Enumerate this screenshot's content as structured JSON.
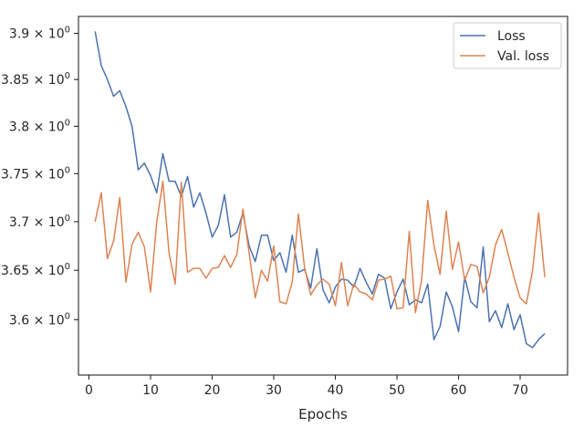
{
  "chart_data": {
    "type": "line",
    "title": "",
    "xlabel": "Epochs",
    "ylabel": "",
    "xlim": [
      -1.7,
      77.7
    ],
    "ylim": [
      3.5447,
      3.9185
    ],
    "yscale": "log",
    "grid": false,
    "legend": "upper right",
    "x_ticks": [
      0,
      10,
      20,
      30,
      40,
      50,
      60,
      70
    ],
    "y_ticks": [
      {
        "value": 3.6,
        "mant": "3.6",
        "exp": "0"
      },
      {
        "value": 3.65,
        "mant": "3.65",
        "exp": "0"
      },
      {
        "value": 3.7,
        "mant": "3.7",
        "exp": "0"
      },
      {
        "value": 3.75,
        "mant": "3.75",
        "exp": "0"
      },
      {
        "value": 3.8,
        "mant": "3.8",
        "exp": "0"
      },
      {
        "value": 3.85,
        "mant": "3.85",
        "exp": "0"
      },
      {
        "value": 3.9,
        "mant": "3.9",
        "exp": "0"
      }
    ],
    "x": [
      1,
      2,
      3,
      4,
      5,
      6,
      7,
      8,
      9,
      10,
      11,
      12,
      13,
      14,
      15,
      16,
      17,
      18,
      19,
      20,
      21,
      22,
      23,
      24,
      25,
      26,
      27,
      28,
      29,
      30,
      31,
      32,
      33,
      34,
      35,
      36,
      37,
      38,
      39,
      40,
      41,
      42,
      43,
      44,
      45,
      46,
      47,
      48,
      49,
      50,
      51,
      52,
      53,
      54,
      55,
      56,
      57,
      58,
      59,
      60,
      61,
      62,
      63,
      64,
      65,
      66,
      67,
      68,
      69,
      70,
      71,
      72,
      73,
      74
    ],
    "series": [
      {
        "name": "Loss",
        "color": "#4c72b0",
        "values": [
          3.902,
          3.865,
          3.85,
          3.832,
          3.838,
          3.821,
          3.8,
          3.754,
          3.761,
          3.748,
          3.73,
          3.771,
          3.742,
          3.742,
          3.726,
          3.747,
          3.715,
          3.73,
          3.709,
          3.684,
          3.696,
          3.728,
          3.684,
          3.689,
          3.709,
          3.675,
          3.659,
          3.686,
          3.686,
          3.66,
          3.668,
          3.648,
          3.686,
          3.648,
          3.651,
          3.632,
          3.672,
          3.63,
          3.617,
          3.633,
          3.641,
          3.64,
          3.633,
          3.652,
          3.638,
          3.626,
          3.646,
          3.642,
          3.611,
          3.628,
          3.641,
          3.615,
          3.62,
          3.617,
          3.636,
          3.58,
          3.593,
          3.628,
          3.613,
          3.588,
          3.643,
          3.618,
          3.612,
          3.674,
          3.598,
          3.609,
          3.592,
          3.616,
          3.59,
          3.605,
          3.576,
          3.572,
          3.58,
          3.586
        ]
      },
      {
        "name": "Val. loss",
        "color": "#dd8452",
        "values": [
          3.7,
          3.73,
          3.662,
          3.68,
          3.725,
          3.638,
          3.677,
          3.689,
          3.674,
          3.628,
          3.699,
          3.742,
          3.668,
          3.636,
          3.741,
          3.648,
          3.652,
          3.652,
          3.642,
          3.652,
          3.653,
          3.665,
          3.653,
          3.666,
          3.713,
          3.668,
          3.622,
          3.65,
          3.639,
          3.675,
          3.618,
          3.616,
          3.638,
          3.708,
          3.653,
          3.625,
          3.635,
          3.641,
          3.636,
          3.614,
          3.658,
          3.614,
          3.636,
          3.628,
          3.626,
          3.62,
          3.64,
          3.641,
          3.644,
          3.611,
          3.612,
          3.69,
          3.607,
          3.64,
          3.722,
          3.676,
          3.646,
          3.711,
          3.651,
          3.679,
          3.64,
          3.656,
          3.654,
          3.627,
          3.643,
          3.676,
          3.692,
          3.668,
          3.643,
          3.622,
          3.616,
          3.649,
          3.709,
          3.643
        ]
      }
    ]
  }
}
